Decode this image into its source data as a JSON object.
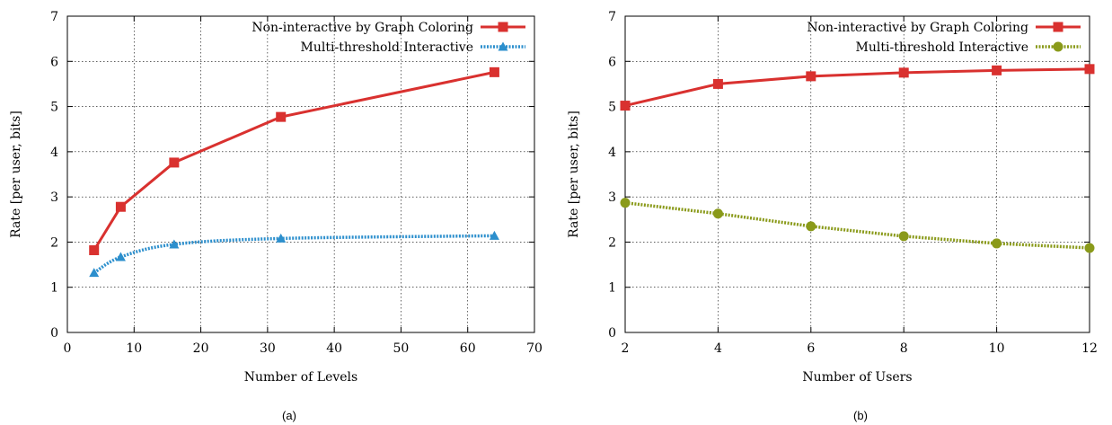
{
  "chart_data": [
    {
      "type": "line",
      "caption": "(a)",
      "xlabel": "Number of Levels",
      "ylabel": "Rate [per user, bits]",
      "xlim": [
        0,
        70
      ],
      "ylim": [
        0,
        7
      ],
      "xticks": [
        0,
        10,
        20,
        30,
        40,
        50,
        60,
        70
      ],
      "yticks": [
        0,
        1,
        2,
        3,
        4,
        5,
        6,
        7
      ],
      "grid": true,
      "legend_position": "top-right",
      "series": [
        {
          "name": "Non-interactive by Graph Coloring",
          "color": "#d9312f",
          "marker": "square",
          "style": "solid",
          "x": [
            4,
            8,
            16,
            32,
            64
          ],
          "values": [
            1.82,
            2.78,
            3.76,
            4.77,
            5.76
          ]
        },
        {
          "name": "Multi-threshold Interactive",
          "color": "#2c8fcd",
          "marker": "triangle",
          "style": "dotted",
          "x": [
            4,
            8,
            16,
            32,
            64
          ],
          "values": [
            1.32,
            1.67,
            1.95,
            2.08,
            2.14
          ]
        }
      ]
    },
    {
      "type": "line",
      "caption": "(b)",
      "xlabel": "Number of Users",
      "ylabel": "Rate [per user, bits]",
      "xlim": [
        2,
        12
      ],
      "ylim": [
        0,
        7
      ],
      "xticks": [
        2,
        4,
        6,
        8,
        10,
        12
      ],
      "yticks": [
        0,
        1,
        2,
        3,
        4,
        5,
        6,
        7
      ],
      "grid": true,
      "legend_position": "top-right",
      "series": [
        {
          "name": "Non-interactive by Graph Coloring",
          "color": "#d9312f",
          "marker": "square",
          "style": "solid",
          "x": [
            2,
            4,
            6,
            8,
            10,
            12
          ],
          "values": [
            5.02,
            5.5,
            5.67,
            5.75,
            5.8,
            5.83
          ]
        },
        {
          "name": "Multi-threshold Interactive",
          "color": "#8a9a1a",
          "marker": "circle",
          "style": "dotted",
          "x": [
            2,
            4,
            6,
            8,
            10,
            12
          ],
          "values": [
            2.87,
            2.63,
            2.35,
            2.13,
            1.97,
            1.87
          ]
        }
      ]
    }
  ]
}
